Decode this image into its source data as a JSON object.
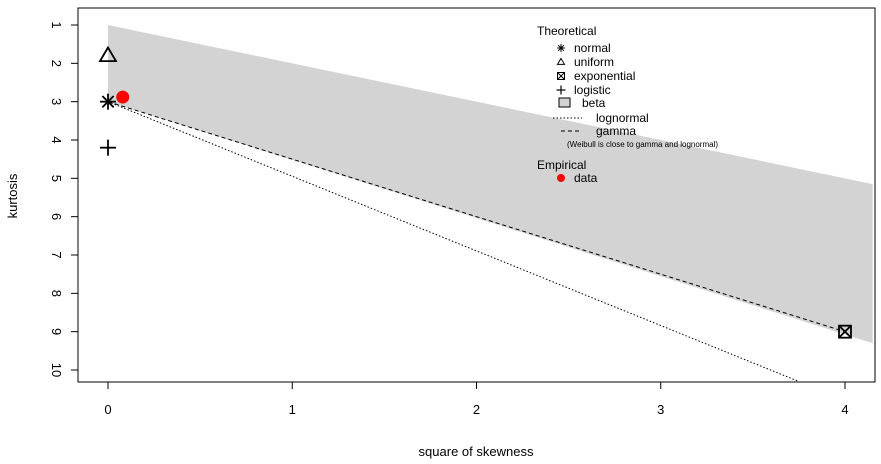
{
  "chart_data": {
    "type": "scatter",
    "title": "",
    "xlabel": "square of skewness",
    "ylabel": "kurtosis",
    "xlim": [
      0,
      4
    ],
    "ylim": [
      10,
      1
    ],
    "y_reversed": true,
    "grid": false,
    "x_ticks": [
      0,
      1,
      2,
      3,
      4
    ],
    "y_ticks": [
      1,
      2,
      3,
      4,
      5,
      6,
      7,
      8,
      9,
      10
    ],
    "x_tick_labels": [
      "0",
      "1",
      "2",
      "3",
      "4"
    ],
    "y_tick_labels": [
      "1",
      "2",
      "3",
      "4",
      "5",
      "6",
      "7",
      "8",
      "9",
      "10"
    ],
    "theoretical_points": [
      {
        "name": "normal",
        "marker": "asterisk",
        "x": 0,
        "y": 3
      },
      {
        "name": "uniform",
        "marker": "triangle",
        "x": 0,
        "y": 1.8
      },
      {
        "name": "exponential",
        "marker": "boxed-x",
        "x": 4,
        "y": 9
      },
      {
        "name": "logistic",
        "marker": "plus",
        "x": 0,
        "y": 4.2
      }
    ],
    "beta_region": {
      "name": "beta",
      "upper_boundary": {
        "x": [
          0,
          4.15
        ],
        "y": [
          1,
          5.15
        ]
      },
      "lower_boundary": {
        "x": [
          0,
          4.15
        ],
        "y": [
          3,
          9.3
        ]
      },
      "color": "#d3d3d3"
    },
    "lines": [
      {
        "name": "lognormal",
        "style": "dotted",
        "x": [
          0,
          3.75
        ],
        "y": [
          3,
          10.3
        ]
      },
      {
        "name": "gamma",
        "style": "dashed",
        "x": [
          0,
          4
        ],
        "y": [
          3,
          9
        ]
      }
    ],
    "empirical": [
      {
        "name": "data",
        "x": 0.08,
        "y": 2.88,
        "color": "#ff0000"
      }
    ],
    "legend": {
      "placement": "top-right",
      "theoretical_title": "Theoretical",
      "items": [
        "normal",
        "uniform",
        "exponential",
        "logistic",
        "beta",
        "lognormal",
        "gamma"
      ],
      "note": "(Weibull is close to gamma and lognormal)",
      "empirical_title": "Empirical",
      "empirical_items": [
        "data"
      ]
    }
  }
}
